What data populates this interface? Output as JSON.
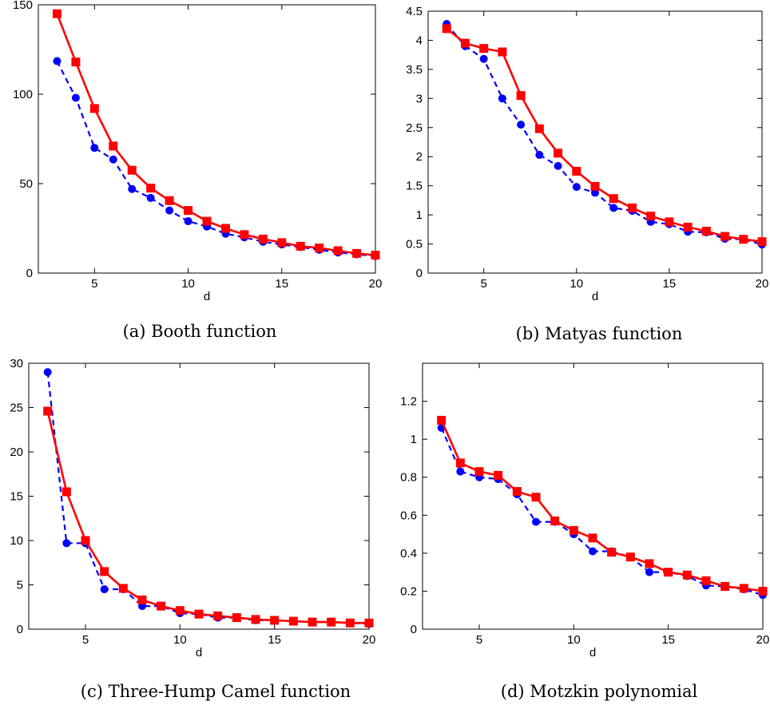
{
  "charts": {
    "0": {
      "caption": "(a) Booth function"
    },
    "1": {
      "caption": "(b) Matyas function"
    },
    "2": {
      "caption": "(c) Three-Hump Camel function"
    },
    "3": {
      "caption": "(d) Motzkin polynomial"
    }
  },
  "colors": {
    "blue_series": "#0000ff",
    "red_series": "#ff0000",
    "axes": "#000000"
  },
  "chart_data": [
    {
      "type": "line",
      "caption": "(a) Booth function",
      "xlabel": "d",
      "ylabel": "",
      "xlim": [
        2,
        20
      ],
      "ylim": [
        0,
        150
      ],
      "xticks": [
        5,
        10,
        15,
        20
      ],
      "yticks": [
        0,
        50,
        100,
        150
      ],
      "grid": false,
      "x": [
        3,
        4,
        5,
        6,
        7,
        8,
        9,
        10,
        11,
        12,
        13,
        14,
        15,
        16,
        17,
        18,
        19,
        20
      ],
      "series": [
        {
          "style": "dashed-circle",
          "color": "#0000ff",
          "values": [
            118.5,
            98,
            70,
            63.5,
            47,
            42,
            35,
            29,
            26,
            22,
            20,
            17.5,
            16,
            14.5,
            13,
            11.5,
            10.5,
            9.5
          ]
        },
        {
          "style": "solid-square",
          "color": "#ff0000",
          "values": [
            145,
            118,
            92,
            71,
            57.5,
            47.5,
            40.5,
            35,
            29,
            25,
            21.5,
            19,
            17,
            15,
            14,
            12.5,
            11,
            10
          ]
        }
      ]
    },
    {
      "type": "line",
      "caption": "(b) Matyas function",
      "xlabel": "d",
      "ylabel": "",
      "xlim": [
        2,
        20
      ],
      "ylim": [
        0,
        4.5
      ],
      "xticks": [
        5,
        10,
        15,
        20
      ],
      "yticks": [
        0,
        0.5,
        1,
        1.5,
        2,
        2.5,
        3,
        3.5,
        4,
        4.5
      ],
      "grid": false,
      "x": [
        3,
        4,
        5,
        6,
        7,
        8,
        9,
        10,
        11,
        12,
        13,
        14,
        15,
        16,
        17,
        18,
        19,
        20
      ],
      "series": [
        {
          "style": "dashed-circle",
          "color": "#0000ff",
          "values": [
            4.28,
            3.9,
            3.68,
            3.0,
            2.55,
            2.03,
            1.84,
            1.48,
            1.38,
            1.12,
            1.07,
            0.88,
            0.84,
            0.71,
            0.7,
            0.59,
            0.58,
            0.49
          ]
        },
        {
          "style": "solid-square",
          "color": "#ff0000",
          "values": [
            4.2,
            3.95,
            3.86,
            3.8,
            3.05,
            2.48,
            2.06,
            1.75,
            1.49,
            1.28,
            1.12,
            0.98,
            0.88,
            0.79,
            0.72,
            0.63,
            0.58,
            0.54
          ]
        }
      ]
    },
    {
      "type": "line",
      "caption": "(c) Three-Hump Camel function",
      "xlabel": "d",
      "ylabel": "",
      "xlim": [
        2,
        20
      ],
      "ylim": [
        0,
        30
      ],
      "xticks": [
        5,
        10,
        15,
        20
      ],
      "yticks": [
        0,
        5,
        10,
        15,
        20,
        25,
        30
      ],
      "grid": false,
      "x": [
        3,
        4,
        5,
        6,
        7,
        8,
        9,
        10,
        11,
        12,
        13,
        14,
        15,
        16,
        17,
        18,
        19,
        20
      ],
      "series": [
        {
          "style": "dashed-circle",
          "color": "#0000ff",
          "values": [
            29,
            9.7,
            9.7,
            4.5,
            4.5,
            2.6,
            2.6,
            1.8,
            1.7,
            1.3,
            1.3,
            1.0,
            1.0,
            0.9,
            0.8,
            0.8,
            0.7,
            0.6
          ]
        },
        {
          "style": "solid-square",
          "color": "#ff0000",
          "values": [
            24.6,
            15.5,
            10.0,
            6.5,
            4.6,
            3.3,
            2.6,
            2.1,
            1.7,
            1.5,
            1.3,
            1.1,
            1.0,
            0.9,
            0.8,
            0.8,
            0.7,
            0.7
          ]
        }
      ]
    },
    {
      "type": "line",
      "caption": "(d) Motzkin polynomial",
      "xlabel": "d",
      "ylabel": "",
      "xlim": [
        2,
        20
      ],
      "ylim": [
        0,
        1.4
      ],
      "xticks": [
        5,
        10,
        15,
        20
      ],
      "yticks": [
        0,
        0.2,
        0.4,
        0.6,
        0.8,
        1,
        1.2
      ],
      "grid": false,
      "x": [
        3,
        4,
        5,
        6,
        7,
        8,
        9,
        10,
        11,
        12,
        13,
        14,
        15,
        16,
        17,
        18,
        19,
        20
      ],
      "series": [
        {
          "style": "dashed-circle",
          "color": "#0000ff",
          "values": [
            1.06,
            0.83,
            0.8,
            0.79,
            0.71,
            0.565,
            0.565,
            0.5,
            0.41,
            0.41,
            0.38,
            0.3,
            0.3,
            0.28,
            0.23,
            0.225,
            0.21,
            0.18
          ]
        },
        {
          "style": "solid-square",
          "color": "#ff0000",
          "values": [
            1.1,
            0.875,
            0.83,
            0.81,
            0.725,
            0.695,
            0.57,
            0.52,
            0.48,
            0.405,
            0.38,
            0.345,
            0.3,
            0.285,
            0.255,
            0.225,
            0.215,
            0.2
          ]
        }
      ]
    }
  ]
}
